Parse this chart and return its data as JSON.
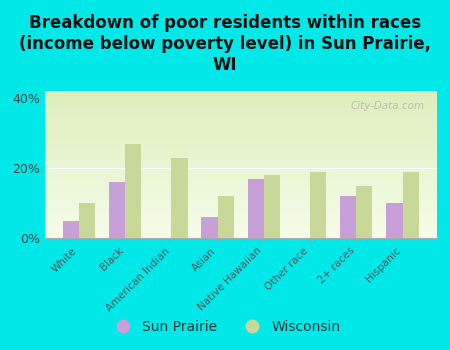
{
  "title": "Breakdown of poor residents within races\n(income below poverty level) in Sun Prairie,\nWI",
  "categories": [
    "White",
    "Black",
    "American Indian",
    "Asian",
    "Native Hawaiian",
    "Other race",
    "2+ races",
    "Hispanic"
  ],
  "sun_prairie": [
    5.0,
    16.0,
    0.0,
    6.0,
    17.0,
    0.0,
    12.0,
    10.0
  ],
  "wisconsin": [
    10.0,
    27.0,
    23.0,
    12.0,
    18.0,
    19.0,
    15.0,
    19.0
  ],
  "sun_prairie_color": "#c8a0d8",
  "wisconsin_color": "#c8d898",
  "background_outer": "#00e8e8",
  "background_plot_top": "#ddeebb",
  "background_plot_bottom": "#f5fcea",
  "ylim": [
    0,
    42
  ],
  "yticks": [
    0,
    20,
    40
  ],
  "ytick_labels": [
    "0%",
    "20%",
    "40%"
  ],
  "title_fontsize": 12,
  "bar_width": 0.35,
  "watermark": "City-Data.com"
}
